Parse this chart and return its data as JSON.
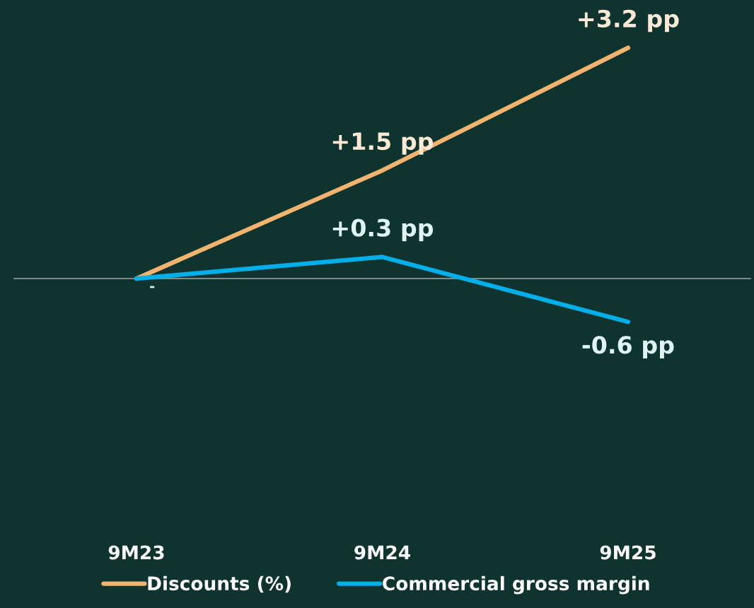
{
  "chart_data": {
    "type": "line",
    "categories": [
      "9M23",
      "9M24",
      "9M25"
    ],
    "series": [
      {
        "name": "Discounts (%)",
        "color": "#f2b36f",
        "values": [
          0,
          1.5,
          3.2
        ],
        "value_labels": [
          null,
          "+1.5 pp",
          "+3.2 pp"
        ]
      },
      {
        "name": "Commercial gross margin",
        "color": "#00aee8",
        "values": [
          0,
          0.3,
          -0.6
        ],
        "value_labels": [
          "-",
          "+0.3 pp",
          "-0.6 pp"
        ]
      }
    ],
    "ref_lines": [
      {
        "axis": "y",
        "value": 0,
        "color": "#7d8b89"
      }
    ],
    "legend": "bottom",
    "grid": false,
    "marker": "none",
    "line_style": "solid"
  }
}
